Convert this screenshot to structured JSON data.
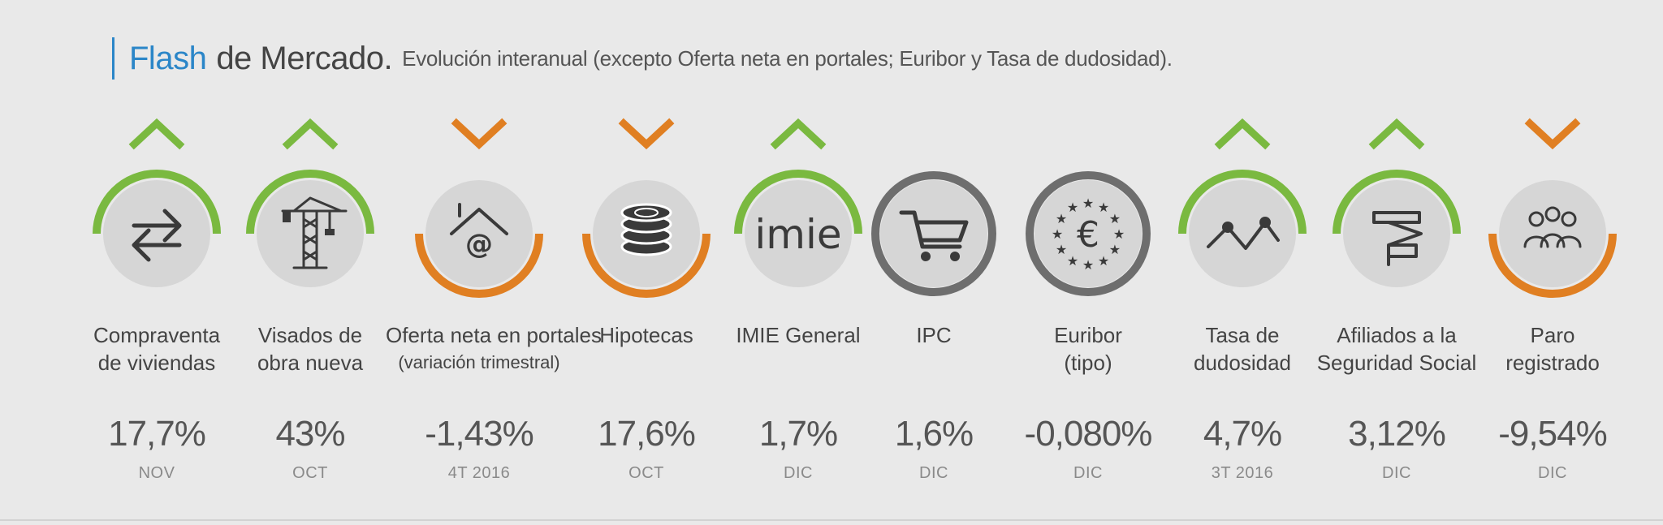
{
  "header": {
    "title_accent": "Flash",
    "title_rest": "de Mercado.",
    "subtitle": "Evolución interanual (excepto Oferta neta en portales; Euribor y Tasa de dudosidad)."
  },
  "colors": {
    "up": "#7ab940",
    "down": "#e07f22",
    "neutral": "#6e6e6e",
    "accent": "#2b86c8",
    "circle": "#d6d6d6",
    "icon": "#3a3a3a"
  },
  "indicators": [
    {
      "label": [
        "Compraventa",
        "de viviendas"
      ],
      "sublabel": "",
      "value": "17,7%",
      "period": "NOV",
      "trend": "up",
      "icon": "swap-arrows-icon"
    },
    {
      "label": [
        "Visados de",
        "obra nueva"
      ],
      "sublabel": "",
      "value": "43%",
      "period": "OCT",
      "trend": "up",
      "icon": "crane-icon"
    },
    {
      "label": [
        "Oferta neta en portales"
      ],
      "sublabel": "(variación trimestral)",
      "value": "-1,43%",
      "period": "4T 2016",
      "trend": "down",
      "icon": "house-at-icon"
    },
    {
      "label": [
        "Hipotecas"
      ],
      "sublabel": "",
      "value": "17,6%",
      "period": "OCT",
      "trend": "down",
      "icon": "coin-stack-icon"
    },
    {
      "label": [
        "IMIE General"
      ],
      "sublabel": "",
      "value": "1,7%",
      "period": "DIC",
      "trend": "up",
      "icon": "imie-logo-icon",
      "icon_text": "imie"
    },
    {
      "label": [
        "IPC"
      ],
      "sublabel": "",
      "value": "1,6%",
      "period": "DIC",
      "trend": "neutral",
      "icon": "shopping-cart-icon"
    },
    {
      "label": [
        "Euribor",
        "(tipo)"
      ],
      "sublabel": "",
      "value": "-0,080%",
      "period": "DIC",
      "trend": "neutral",
      "icon": "euro-stars-icon",
      "icon_text": "€"
    },
    {
      "label": [
        "Tasa de",
        "dudosidad"
      ],
      "sublabel": "",
      "value": "4,7%",
      "period": "3T 2016",
      "trend": "up",
      "icon": "zigzag-line-icon"
    },
    {
      "label": [
        "Afiliados a la",
        "Seguridad Social"
      ],
      "sublabel": "",
      "value": "3,12%",
      "period": "DIC",
      "trend": "up",
      "icon": "affiliates-logo-icon"
    },
    {
      "label": [
        "Paro",
        "registrado"
      ],
      "sublabel": "",
      "value": "-9,54%",
      "period": "DIC",
      "trend": "down",
      "icon": "people-group-icon"
    }
  ]
}
